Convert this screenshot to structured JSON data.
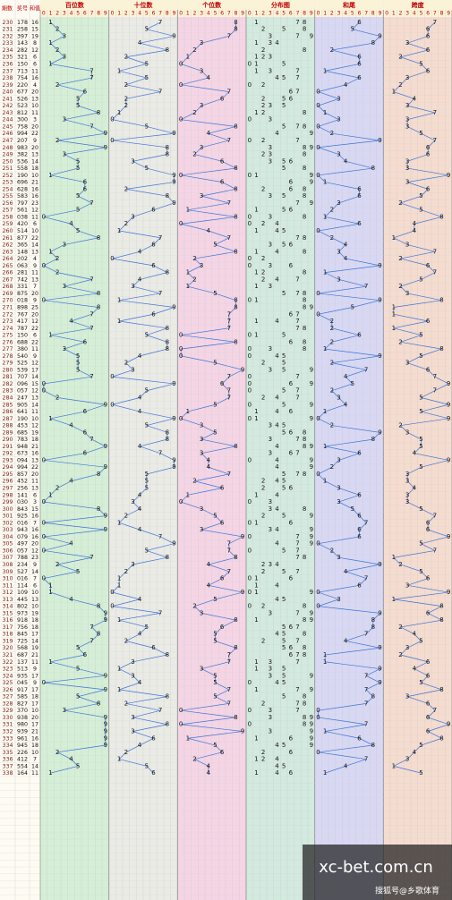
{
  "header": {
    "period": "期数",
    "number": "奖号",
    "sum": "和值",
    "sections": [
      "百位数",
      "十位数",
      "个位数",
      "分布图",
      "和尾",
      "跨度"
    ],
    "digits": [
      0,
      1,
      2,
      3,
      4,
      5,
      6,
      7,
      8,
      9
    ]
  },
  "periods": [
    230,
    231,
    232,
    233,
    234,
    235,
    236,
    237,
    238,
    239,
    240,
    241,
    242,
    243,
    244,
    245,
    246,
    247,
    248,
    249,
    250,
    251,
    252,
    253,
    254,
    255,
    256,
    257,
    258,
    259,
    260,
    261,
    262,
    263,
    264,
    265,
    266,
    267,
    268,
    269,
    270,
    271,
    272,
    273,
    274,
    275,
    276,
    277,
    278,
    279,
    280,
    281,
    282,
    283,
    284,
    285,
    286,
    287,
    288,
    289,
    290,
    291,
    292,
    293,
    294,
    295,
    296,
    297,
    298,
    299,
    300,
    301,
    302,
    303,
    304,
    305,
    306,
    307,
    308,
    309,
    310,
    311,
    312,
    313,
    314,
    315,
    316,
    317,
    318,
    319,
    320,
    321,
    322,
    323,
    324,
    325,
    326,
    327,
    328,
    329,
    330,
    331,
    332,
    333,
    334,
    335,
    336,
    337,
    338
  ],
  "numbers": [
    "178",
    "258",
    "397",
    "143",
    "282",
    "321",
    "150",
    "713",
    "754",
    "220",
    "677",
    "526",
    "523",
    "812",
    "300",
    "758",
    "994",
    "207",
    "983",
    "382",
    "536",
    "558",
    "190",
    "696",
    "628",
    "583",
    "797",
    "561",
    "038",
    "420",
    "514",
    "877",
    "365",
    "148",
    "202",
    "063",
    "281",
    "742",
    "331",
    "875",
    "018",
    "898",
    "767",
    "417",
    "787",
    "150",
    "688",
    "380",
    "540",
    "525",
    "539",
    "707",
    "096",
    "057",
    "247",
    "905",
    "641",
    "190",
    "453",
    "685",
    "783",
    "948",
    "673",
    "094",
    "994",
    "857",
    "452",
    "256",
    "141",
    "030",
    "843",
    "925",
    "016",
    "943",
    "079",
    "497",
    "057",
    "788",
    "234",
    "527",
    "016",
    "114",
    "109",
    "445",
    "802",
    "973",
    "918",
    "756",
    "845",
    "725",
    "568",
    "687",
    "137",
    "513",
    "935",
    "045",
    "917",
    "585",
    "827",
    "370",
    "938",
    "980",
    "939",
    "961",
    "945",
    "226",
    "412",
    "554",
    "164"
  ],
  "sums": [
    16,
    15,
    19,
    8,
    12,
    6,
    6,
    11,
    16,
    4,
    20,
    13,
    10,
    11,
    3,
    20,
    22,
    9,
    20,
    13,
    14,
    18,
    10,
    21,
    16,
    16,
    23,
    12,
    11,
    6,
    10,
    22,
    14,
    13,
    4,
    9,
    11,
    13,
    7,
    20,
    9,
    25,
    20,
    12,
    22,
    6,
    22,
    11,
    9,
    12,
    17,
    14,
    15,
    12,
    13,
    14,
    11,
    10,
    12,
    19,
    18,
    21,
    16,
    13,
    22,
    20,
    11,
    13,
    6,
    3,
    15,
    16,
    7,
    16,
    16,
    20,
    12,
    23,
    9,
    14,
    7,
    6,
    10,
    13,
    10,
    19,
    18,
    18,
    17,
    14,
    19,
    21,
    11,
    9,
    17,
    9,
    17,
    18,
    17,
    10,
    20,
    17,
    21,
    16,
    18,
    10,
    7,
    14,
    11
  ],
  "hundreds": [
    1,
    2,
    3,
    1,
    2,
    3,
    1,
    7,
    7,
    2,
    6,
    5,
    5,
    8,
    3,
    7,
    9,
    2,
    9,
    3,
    5,
    5,
    1,
    6,
    6,
    5,
    7,
    5,
    0,
    4,
    5,
    8,
    3,
    1,
    2,
    0,
    2,
    7,
    3,
    8,
    0,
    8,
    7,
    4,
    7,
    1,
    6,
    3,
    5,
    5,
    5,
    7,
    0,
    0,
    2,
    9,
    6,
    1,
    4,
    6,
    7,
    9,
    6,
    0,
    9,
    8,
    4,
    2,
    1,
    0,
    8,
    9,
    0,
    9,
    0,
    4,
    0,
    7,
    2,
    5,
    0,
    1,
    1,
    4,
    8,
    9,
    9,
    7,
    8,
    7,
    5,
    6,
    1,
    5,
    9,
    0,
    9,
    5,
    8,
    3,
    9,
    9,
    9,
    9,
    9,
    2,
    4,
    5,
    1
  ],
  "tens": [
    7,
    5,
    9,
    4,
    8,
    2,
    5,
    1,
    5,
    2,
    7,
    2,
    2,
    1,
    0,
    5,
    9,
    0,
    8,
    8,
    3,
    5,
    9,
    9,
    2,
    8,
    9,
    6,
    3,
    2,
    1,
    7,
    6,
    4,
    0,
    6,
    8,
    4,
    3,
    7,
    1,
    9,
    6,
    1,
    8,
    5,
    8,
    8,
    4,
    2,
    3,
    0,
    9,
    5,
    4,
    0,
    4,
    9,
    5,
    8,
    8,
    4,
    7,
    9,
    9,
    5,
    5,
    5,
    4,
    3,
    4,
    2,
    1,
    4,
    7,
    9,
    5,
    8,
    3,
    2,
    1,
    1,
    0,
    4,
    0,
    7,
    1,
    5,
    4,
    2,
    6,
    8,
    3,
    1,
    3,
    4,
    1,
    8,
    2,
    7,
    3,
    8,
    3,
    6,
    4,
    2,
    1,
    5,
    6
  ],
  "units": [
    8,
    8,
    7,
    3,
    2,
    1,
    0,
    3,
    4,
    0,
    7,
    6,
    3,
    2,
    0,
    8,
    4,
    7,
    3,
    2,
    6,
    8,
    0,
    6,
    8,
    3,
    7,
    1,
    8,
    0,
    4,
    7,
    5,
    8,
    2,
    3,
    1,
    2,
    1,
    5,
    8,
    8,
    7,
    7,
    7,
    0,
    8,
    0,
    0,
    5,
    9,
    7,
    6,
    7,
    7,
    5,
    1,
    0,
    3,
    5,
    3,
    8,
    3,
    4,
    4,
    7,
    2,
    6,
    1,
    0,
    3,
    5,
    6,
    3,
    9,
    7,
    7,
    8,
    4,
    7,
    6,
    4,
    9,
    5,
    2,
    3,
    8,
    6,
    5,
    5,
    8,
    7,
    7,
    3,
    5,
    5,
    7,
    5,
    7,
    0,
    8,
    0,
    9,
    1,
    5,
    6,
    2,
    4,
    4
  ],
  "sum_tail": [
    6,
    5,
    9,
    8,
    2,
    6,
    6,
    1,
    6,
    4,
    0,
    3,
    0,
    1,
    3,
    0,
    2,
    9,
    0,
    3,
    4,
    8,
    0,
    1,
    6,
    6,
    3,
    2,
    1,
    6,
    0,
    2,
    4,
    3,
    4,
    9,
    1,
    3,
    7,
    0,
    9,
    5,
    0,
    2,
    2,
    6,
    2,
    1,
    9,
    2,
    7,
    4,
    5,
    2,
    3,
    4,
    1,
    0,
    2,
    9,
    8,
    1,
    6,
    3,
    2,
    0,
    1,
    3,
    6,
    3,
    5,
    6,
    7,
    6,
    6,
    0,
    2,
    3,
    9,
    4,
    7,
    6,
    0,
    3,
    0,
    9,
    8,
    8,
    7,
    4,
    9,
    1,
    1,
    9,
    7,
    9,
    7,
    8,
    7,
    0,
    0,
    7,
    1,
    6,
    8,
    0,
    7,
    4,
    1
  ],
  "span": [
    7,
    6,
    6,
    3,
    6,
    2,
    5,
    6,
    3,
    2,
    1,
    4,
    3,
    7,
    3,
    3,
    5,
    7,
    6,
    6,
    3,
    3,
    9,
    3,
    6,
    5,
    2,
    5,
    8,
    4,
    4,
    1,
    3,
    7,
    2,
    6,
    7,
    5,
    2,
    3,
    8,
    1,
    1,
    6,
    1,
    5,
    2,
    8,
    5,
    3,
    6,
    7,
    9,
    7,
    5,
    9,
    5,
    9,
    2,
    3,
    5,
    5,
    4,
    9,
    5,
    3,
    3,
    4,
    3,
    3,
    5,
    7,
    6,
    6,
    9,
    5,
    7,
    1,
    2,
    5,
    6,
    3,
    9,
    1,
    8,
    6,
    8,
    2,
    4,
    5,
    3,
    2,
    6,
    4,
    6,
    5,
    8,
    3,
    6,
    7,
    6,
    9,
    6,
    8,
    5,
    4,
    3,
    1,
    5
  ],
  "watermark": {
    "site": "xc-bet.com.cn",
    "author": "搜狐号@乡歌体育"
  }
}
